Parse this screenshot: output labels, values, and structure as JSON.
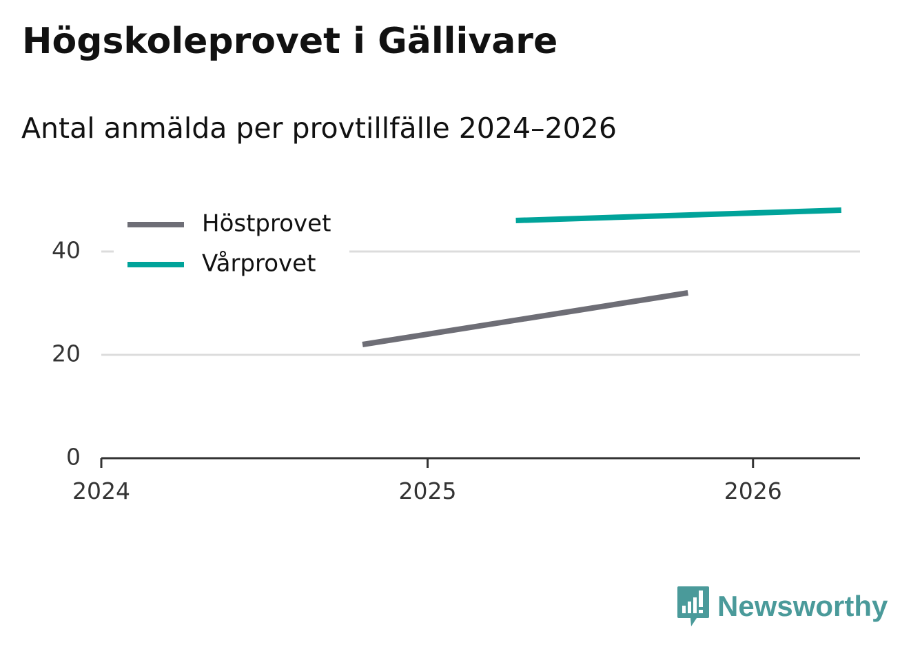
{
  "title": "Högskoleprovet i Gällivare",
  "subtitle": "Antal anmälda per provtillfälle 2024–2026",
  "brand": {
    "name": "Newsworthy",
    "logo_icon": "newsworthy-logo-icon",
    "color": "#4a9a9a"
  },
  "chart_data": {
    "type": "line",
    "x_tick_labels": [
      "2024",
      "2025",
      "2026"
    ],
    "y_tick_labels": [
      "0",
      "20",
      "40"
    ],
    "xlim": [
      "2024-01-01",
      "2026-05-01"
    ],
    "ylim": [
      0,
      50
    ],
    "grid": true,
    "legend_position": "top-left",
    "series": [
      {
        "name": "Höstprovet",
        "color": "#6e6e76",
        "points": [
          {
            "x": "2024-10-20",
            "y": 22
          },
          {
            "x": "2025-10-20",
            "y": 32
          }
        ]
      },
      {
        "name": "Vårprovet",
        "color": "#00a39a",
        "points": [
          {
            "x": "2025-04-10",
            "y": 46
          },
          {
            "x": "2026-04-10",
            "y": 48
          }
        ]
      }
    ]
  }
}
